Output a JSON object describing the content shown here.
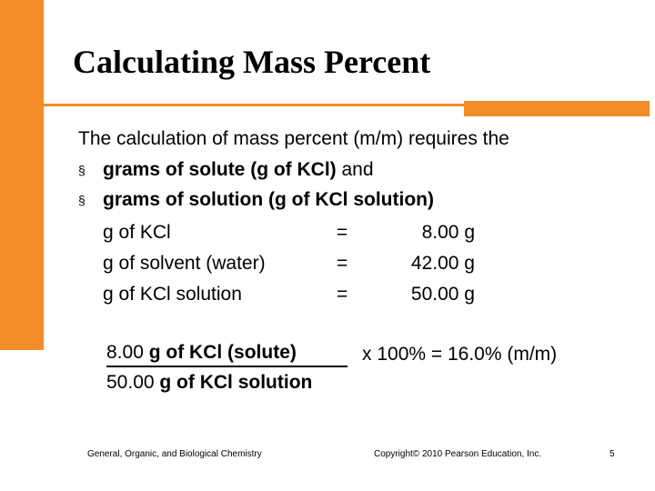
{
  "theme": {
    "accent": "#F28C28",
    "text": "#000000",
    "background": "#FFFFFF"
  },
  "title": "Calculating Mass Percent",
  "intro": "The calculation of mass percent (m/m) requires the",
  "bullets": [
    {
      "bold": "grams of solute (g of KCl)",
      "rest": " and"
    },
    {
      "bold": "grams of solution (g of KCl solution)",
      "rest": ""
    }
  ],
  "bullet_symbol": "§",
  "values": [
    {
      "label": "g of KCl",
      "eq": "=",
      "value": "8.00 g"
    },
    {
      "label": "g of solvent (water)",
      "eq": "=",
      "value": "42.00 g"
    },
    {
      "label": "g of KCl solution",
      "eq": "=",
      "value": "50.00 g"
    }
  ],
  "formula": {
    "numerator_value": "8.00 ",
    "numerator_unit": "g of KCl (solute)",
    "denominator_value": "50.00 ",
    "denominator_unit": "g of KCl solution",
    "result": "x 100%  =  16.0% (m/m)"
  },
  "footer": {
    "left": "General, Organic, and Biological Chemistry",
    "center": "Copyright© 2010 Pearson Education, Inc.",
    "page": "5"
  }
}
